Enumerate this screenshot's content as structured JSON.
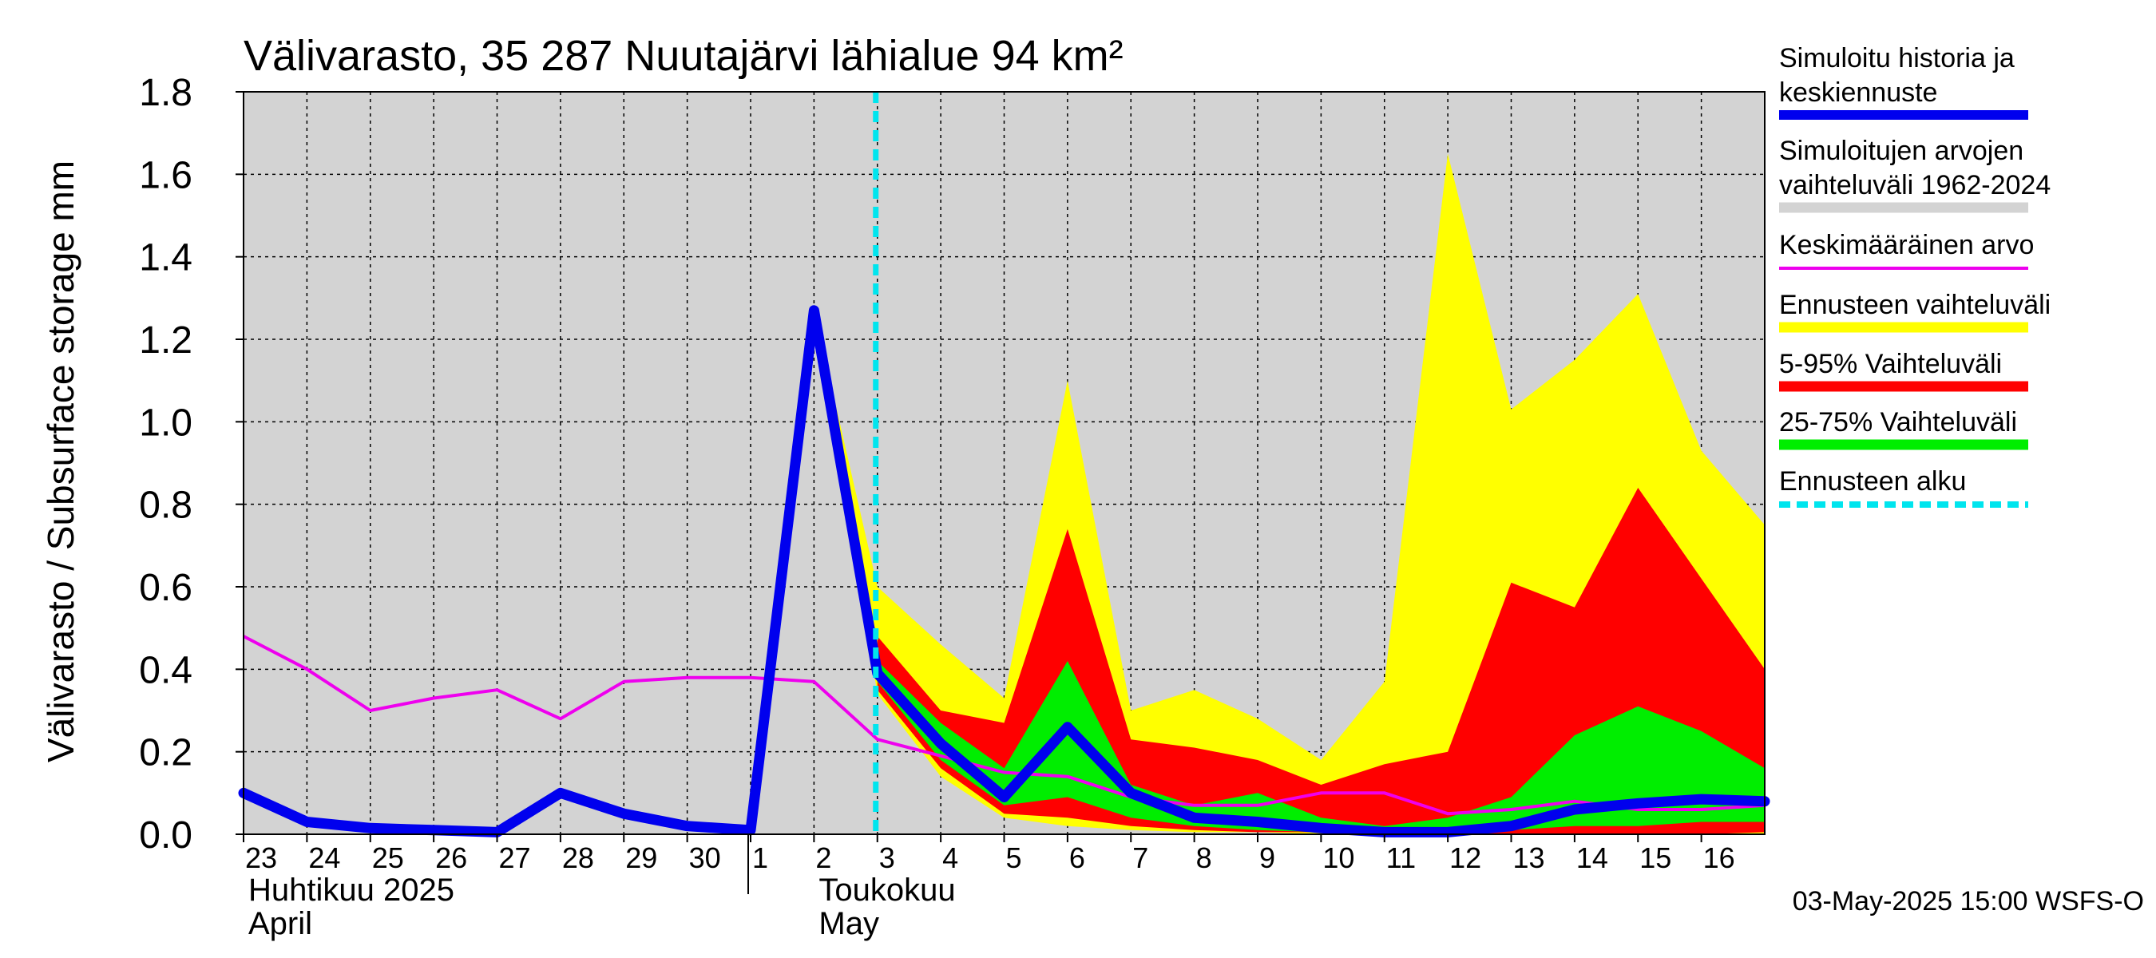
{
  "chart_data": {
    "type": "area",
    "title": "Välivarasto, 35 287 Nuutajärvi lähialue 94 km²",
    "ylabel": "Välivarasto / Subsurface storage  mm",
    "ylim": [
      0.0,
      1.8
    ],
    "yticks": [
      "0.0",
      "0.2",
      "0.4",
      "0.6",
      "0.8",
      "1.0",
      "1.2",
      "1.4",
      "1.6",
      "1.8"
    ],
    "x_day_labels": [
      "23",
      "24",
      "25",
      "26",
      "27",
      "28",
      "29",
      "30",
      "1",
      "2",
      "3",
      "4",
      "5",
      "6",
      "7",
      "8",
      "9",
      "10",
      "11",
      "12",
      "13",
      "14",
      "15",
      "16"
    ],
    "month_labels": [
      {
        "line1": "Huhtikuu  2025",
        "line2": "April"
      },
      {
        "line1": "Toukokuu",
        "line2": "May"
      }
    ],
    "forecast_start_day_index": 10,
    "grid": true,
    "legend_position": "right",
    "legend": [
      {
        "key": "history",
        "line1": "Simuloitu historia ja",
        "line2": "keskiennuste",
        "color": "#0000ee"
      },
      {
        "key": "range",
        "line1": "Simuloitujen arvojen",
        "line2": "vaihteluväli 1962-2024",
        "color": "#d3d3d3"
      },
      {
        "key": "mean",
        "line1": "Keskimääräinen arvo",
        "line2": "",
        "color": "#ee00ee"
      },
      {
        "key": "ens",
        "line1": "Ennusteen vaihteluväli",
        "line2": "",
        "color": "#ffff00"
      },
      {
        "key": "p5_95",
        "line1": "5-95% Vaihteluväli",
        "line2": "",
        "color": "#ff0000"
      },
      {
        "key": "p25_75",
        "line1": "25-75% Vaihteluväli",
        "line2": "",
        "color": "#00ee00"
      },
      {
        "key": "fstart",
        "line1": "Ennusteen alku",
        "line2": "",
        "color": "#00e5ee"
      }
    ],
    "footer": "03-May-2025 15:00 WSFS-O",
    "series": {
      "history": {
        "x": [
          0,
          1,
          2,
          3,
          4,
          5,
          6,
          7,
          8,
          9,
          10,
          11,
          12,
          13,
          14,
          15,
          16,
          17,
          18,
          19,
          20,
          21,
          22,
          23,
          24
        ],
        "y": [
          0.1,
          0.03,
          0.015,
          0.01,
          0.005,
          0.1,
          0.05,
          0.02,
          0.01,
          1.27,
          0.39,
          0.22,
          0.09,
          0.26,
          0.1,
          0.04,
          0.03,
          0.015,
          0.005,
          0.005,
          0.02,
          0.06,
          0.075,
          0.085,
          0.08
        ]
      },
      "mean": {
        "x": [
          0,
          1,
          2,
          3,
          4,
          5,
          6,
          7,
          8,
          9,
          10,
          11,
          12,
          13,
          14,
          15,
          16,
          17,
          18,
          19,
          20,
          21,
          22,
          23,
          24
        ],
        "y": [
          0.48,
          0.4,
          0.3,
          0.33,
          0.35,
          0.28,
          0.37,
          0.38,
          0.38,
          0.37,
          0.23,
          0.19,
          0.15,
          0.14,
          0.09,
          0.07,
          0.07,
          0.1,
          0.1,
          0.05,
          0.06,
          0.08,
          0.06,
          0.06,
          0.07
        ]
      },
      "ens_upper": {
        "x": [
          9,
          10,
          11,
          12,
          13,
          14,
          15,
          16,
          17,
          18,
          19,
          20,
          21,
          22,
          23,
          24
        ],
        "y": [
          1.27,
          0.6,
          0.46,
          0.33,
          1.1,
          0.3,
          0.35,
          0.28,
          0.18,
          0.37,
          1.65,
          1.03,
          1.15,
          1.31,
          0.93,
          0.75
        ]
      },
      "ens_lower": {
        "x": [
          9,
          10,
          11,
          12,
          13,
          14,
          15,
          16,
          17,
          18,
          19,
          20,
          21,
          22,
          23,
          24
        ],
        "y": [
          1.27,
          0.34,
          0.14,
          0.04,
          0.02,
          0.01,
          0.005,
          0.005,
          0.0,
          0.0,
          0.0,
          0.0,
          0.0,
          0.0,
          0.0,
          0.0
        ]
      },
      "p95": {
        "x": [
          10,
          11,
          12,
          13,
          14,
          15,
          16,
          17,
          18,
          19,
          20,
          21,
          22,
          23,
          24
        ],
        "y": [
          0.48,
          0.3,
          0.27,
          0.74,
          0.23,
          0.21,
          0.18,
          0.12,
          0.17,
          0.2,
          0.61,
          0.55,
          0.84,
          0.62,
          0.4
        ]
      },
      "p5": {
        "x": [
          10,
          11,
          12,
          13,
          14,
          15,
          16,
          17,
          18,
          19,
          20,
          21,
          22,
          23,
          24
        ],
        "y": [
          0.35,
          0.16,
          0.05,
          0.04,
          0.02,
          0.01,
          0.005,
          0.005,
          0.0,
          0.0,
          0.0,
          0.0,
          0.0,
          0.0,
          0.005
        ]
      },
      "p75": {
        "x": [
          10,
          11,
          12,
          13,
          14,
          15,
          16,
          17,
          18,
          19,
          20,
          21,
          22,
          23,
          24
        ],
        "y": [
          0.42,
          0.27,
          0.16,
          0.42,
          0.12,
          0.07,
          0.1,
          0.04,
          0.02,
          0.04,
          0.09,
          0.24,
          0.31,
          0.25,
          0.16
        ]
      },
      "p25": {
        "x": [
          10,
          11,
          12,
          13,
          14,
          15,
          16,
          17,
          18,
          19,
          20,
          21,
          22,
          23,
          24
        ],
        "y": [
          0.37,
          0.18,
          0.07,
          0.09,
          0.04,
          0.02,
          0.01,
          0.005,
          0.005,
          0.005,
          0.01,
          0.02,
          0.02,
          0.03,
          0.03
        ]
      }
    }
  }
}
